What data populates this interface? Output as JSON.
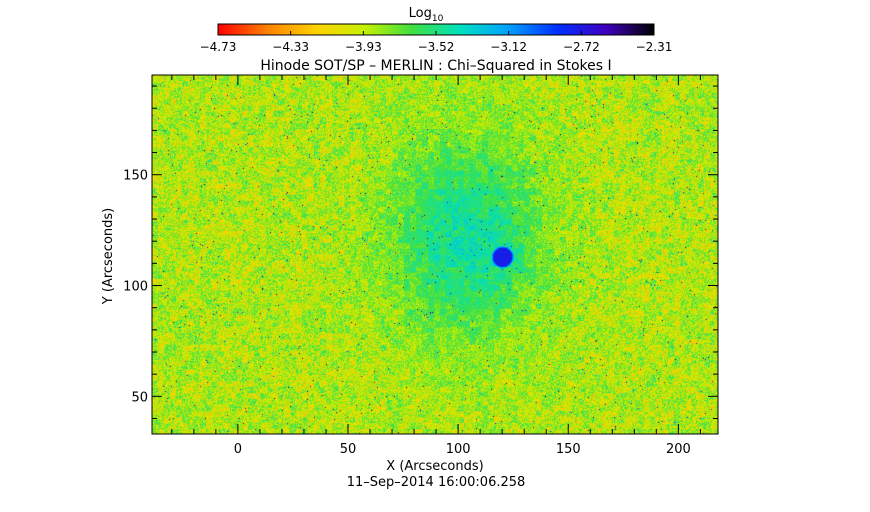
{
  "chart_data": {
    "type": "heatmap",
    "title": "Hinode SOT/SP – MERLIN : Chi–Squared in Stokes I",
    "xlabel": "X (Arcseconds)",
    "ylabel": "Y (Arcseconds)",
    "xlim": [
      -39,
      218
    ],
    "ylim": [
      33,
      195
    ],
    "x_ticks": [
      0,
      50,
      100,
      150,
      200
    ],
    "y_ticks": [
      50,
      100,
      150
    ],
    "x_tick_labels": [
      "0",
      "50",
      "100",
      "150",
      "200"
    ],
    "y_tick_labels": [
      "50",
      "100",
      "150"
    ],
    "colorbar": {
      "label_base": "Log",
      "label_sub": "10",
      "range": [
        -4.73,
        -2.31
      ],
      "tick_labels": [
        "−4.73",
        "−4.33",
        "−3.93",
        "−3.52",
        "−3.12",
        "−2.72",
        "−2.31"
      ],
      "colormap": [
        "#ff0000",
        "#ff8000",
        "#ffd000",
        "#c8f000",
        "#40e040",
        "#00e0c0",
        "#00a0ff",
        "#0030ff",
        "#4000c0",
        "#000000"
      ]
    },
    "features": {
      "background_level": -3.9,
      "active_region_center": [
        103,
        122
      ],
      "active_region_level": -3.45,
      "spot_center": [
        120,
        113
      ],
      "spot_level": -2.75
    },
    "footer": "11–Sep–2014  16:00:06.258"
  }
}
